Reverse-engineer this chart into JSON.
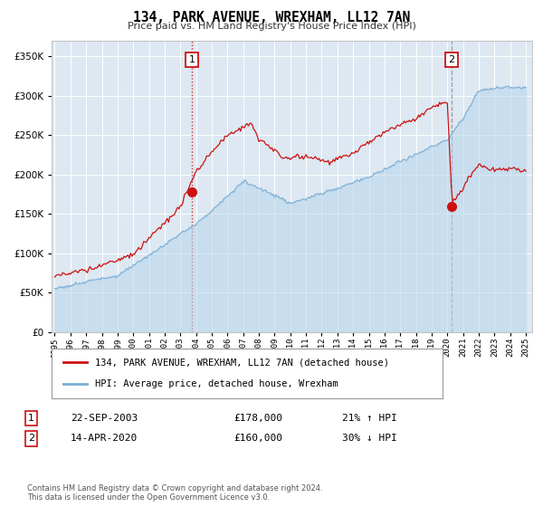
{
  "title": "134, PARK AVENUE, WREXHAM, LL12 7AN",
  "subtitle": "Price paid vs. HM Land Registry's House Price Index (HPI)",
  "ylim": [
    0,
    370000
  ],
  "yticks": [
    0,
    50000,
    100000,
    150000,
    200000,
    250000,
    300000,
    350000
  ],
  "ytick_labels": [
    "£0",
    "£50K",
    "£100K",
    "£150K",
    "£200K",
    "£250K",
    "£300K",
    "£350K"
  ],
  "xstart_year": 1995,
  "xend_year": 2025,
  "bg_color": "#dde8f2",
  "grid_color": "#ffffff",
  "hpi_color": "#7aaed6",
  "hpi_fill_color": "#b8d4ea",
  "price_color": "#cc1111",
  "sale1_date": 2003.73,
  "sale1_price": 178000,
  "sale2_date": 2020.28,
  "sale2_price": 160000,
  "legend_line1": "134, PARK AVENUE, WREXHAM, LL12 7AN (detached house)",
  "legend_line2": "HPI: Average price, detached house, Wrexham",
  "annotation1_label": "1",
  "annotation1_date": "22-SEP-2003",
  "annotation1_price": "£178,000",
  "annotation1_hpi": "21% ↑ HPI",
  "annotation2_label": "2",
  "annotation2_date": "14-APR-2020",
  "annotation2_price": "£160,000",
  "annotation2_hpi": "30% ↓ HPI",
  "footer": "Contains HM Land Registry data © Crown copyright and database right 2024.\nThis data is licensed under the Open Government Licence v3.0."
}
